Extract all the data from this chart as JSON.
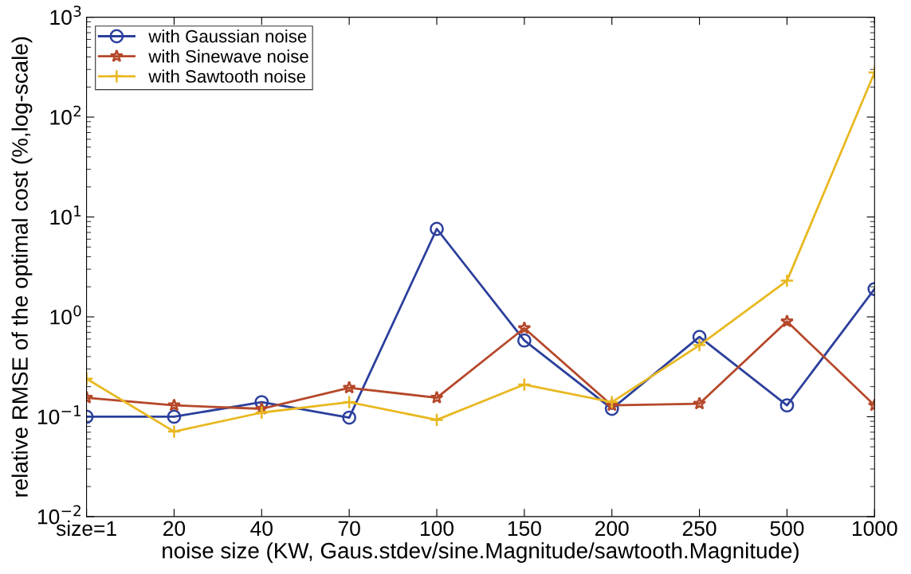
{
  "chart_data": {
    "type": "line",
    "xlabel": "noise size (KW, Gaus.stdev/sine.Magnitude/sawtooth.Magnitude)",
    "ylabel": "relative RMSE of the optimal cost (%,log-scale)",
    "categories": [
      "size=1",
      "20",
      "40",
      "70",
      "100",
      "150",
      "200",
      "250",
      "500",
      "1000"
    ],
    "series": [
      {
        "name": "with Gaussian noise",
        "color": "#2b3f9c",
        "marker": "circle",
        "values": [
          0.1,
          0.1,
          0.14,
          0.098,
          7.6,
          0.58,
          0.12,
          0.63,
          0.13,
          1.9
        ]
      },
      {
        "name": "with Sinewave noise",
        "color": "#b5482a",
        "marker": "star",
        "values": [
          0.155,
          0.13,
          0.12,
          0.195,
          0.155,
          0.77,
          0.13,
          0.135,
          0.9,
          0.13
        ]
      },
      {
        "name": "with Sawtooth noise",
        "color": "#e8b820",
        "marker": "cross",
        "values": [
          0.24,
          0.071,
          0.11,
          0.14,
          0.093,
          0.21,
          0.14,
          0.52,
          2.3,
          280
        ]
      }
    ],
    "log": "y",
    "ylim": [
      0.01,
      1000
    ],
    "yticks": [
      {
        "value": 0.01,
        "label": "10$^{−2}$"
      },
      {
        "value": 0.1,
        "label": "10$^{−1}$"
      },
      {
        "value": 1,
        "label": "10$^{0}$"
      },
      {
        "value": 10,
        "label": "10$^{1}$"
      },
      {
        "value": 100,
        "label": "10$^{2}$"
      },
      {
        "value": 1000,
        "label": "10$^{3}$"
      }
    ],
    "grid": false,
    "legend": "top left"
  }
}
